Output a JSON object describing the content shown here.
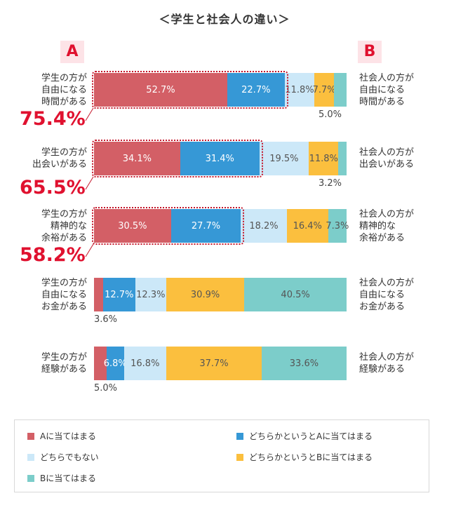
{
  "chart_data": {
    "type": "bar",
    "title": "＜学生と社会人の違い＞",
    "label_a": "A",
    "label_b": "B",
    "series": [
      {
        "name": "Aに当てはまる",
        "color": "#d35f66"
      },
      {
        "name": "どちらかというとAに当てはまる",
        "color": "#3698d6"
      },
      {
        "name": "どちらでもない",
        "color": "#cce8f8"
      },
      {
        "name": "どちらかというとBに当てはまる",
        "color": "#fbbf3e"
      },
      {
        "name": "Bに当てはまる",
        "color": "#7ccdca"
      }
    ],
    "rows": [
      {
        "left": [
          "学生の方が",
          "自由になる",
          "時間がある"
        ],
        "right": [
          "社会人の方が",
          "自由になる",
          "時間がある"
        ],
        "values": [
          52.7,
          22.7,
          11.8,
          7.7,
          5.0
        ],
        "labels": [
          "52.7%",
          "22.7%",
          "11.8%",
          "7.7%",
          "5.0%"
        ],
        "total": "75.4%"
      },
      {
        "left": [
          "学生の方が",
          "出会いがある"
        ],
        "right": [
          "社会人の方が",
          "出会いがある"
        ],
        "values": [
          34.1,
          31.4,
          19.5,
          11.8,
          3.2
        ],
        "labels": [
          "34.1%",
          "31.4%",
          "19.5%",
          "11.8%",
          "3.2%"
        ],
        "total": "65.5%"
      },
      {
        "left": [
          "学生の方が",
          "精神的な",
          "余裕がある"
        ],
        "right": [
          "社会人の方が",
          "精神的な",
          "余裕がある"
        ],
        "values": [
          30.5,
          27.7,
          18.2,
          16.4,
          7.3
        ],
        "labels": [
          "30.5%",
          "27.7%",
          "18.2%",
          "16.4%",
          "7.3%"
        ],
        "total": "58.2%"
      },
      {
        "left": [
          "学生の方が",
          "自由になる",
          "お金がある"
        ],
        "right": [
          "社会人の方が",
          "自由になる",
          "お金がある"
        ],
        "values": [
          3.6,
          12.7,
          12.3,
          30.9,
          40.5
        ],
        "labels": [
          "3.6%",
          "12.7%",
          "12.3%",
          "30.9%",
          "40.5%"
        ],
        "total": ""
      },
      {
        "left": [
          "学生の方が",
          "経験がある"
        ],
        "right": [
          "社会人の方が",
          "経験がある"
        ],
        "values": [
          5.0,
          6.8,
          16.8,
          37.7,
          33.6
        ],
        "labels": [
          "5.0%",
          "6.8%",
          "16.8%",
          "37.7%",
          "33.6%"
        ],
        "total": ""
      }
    ]
  }
}
